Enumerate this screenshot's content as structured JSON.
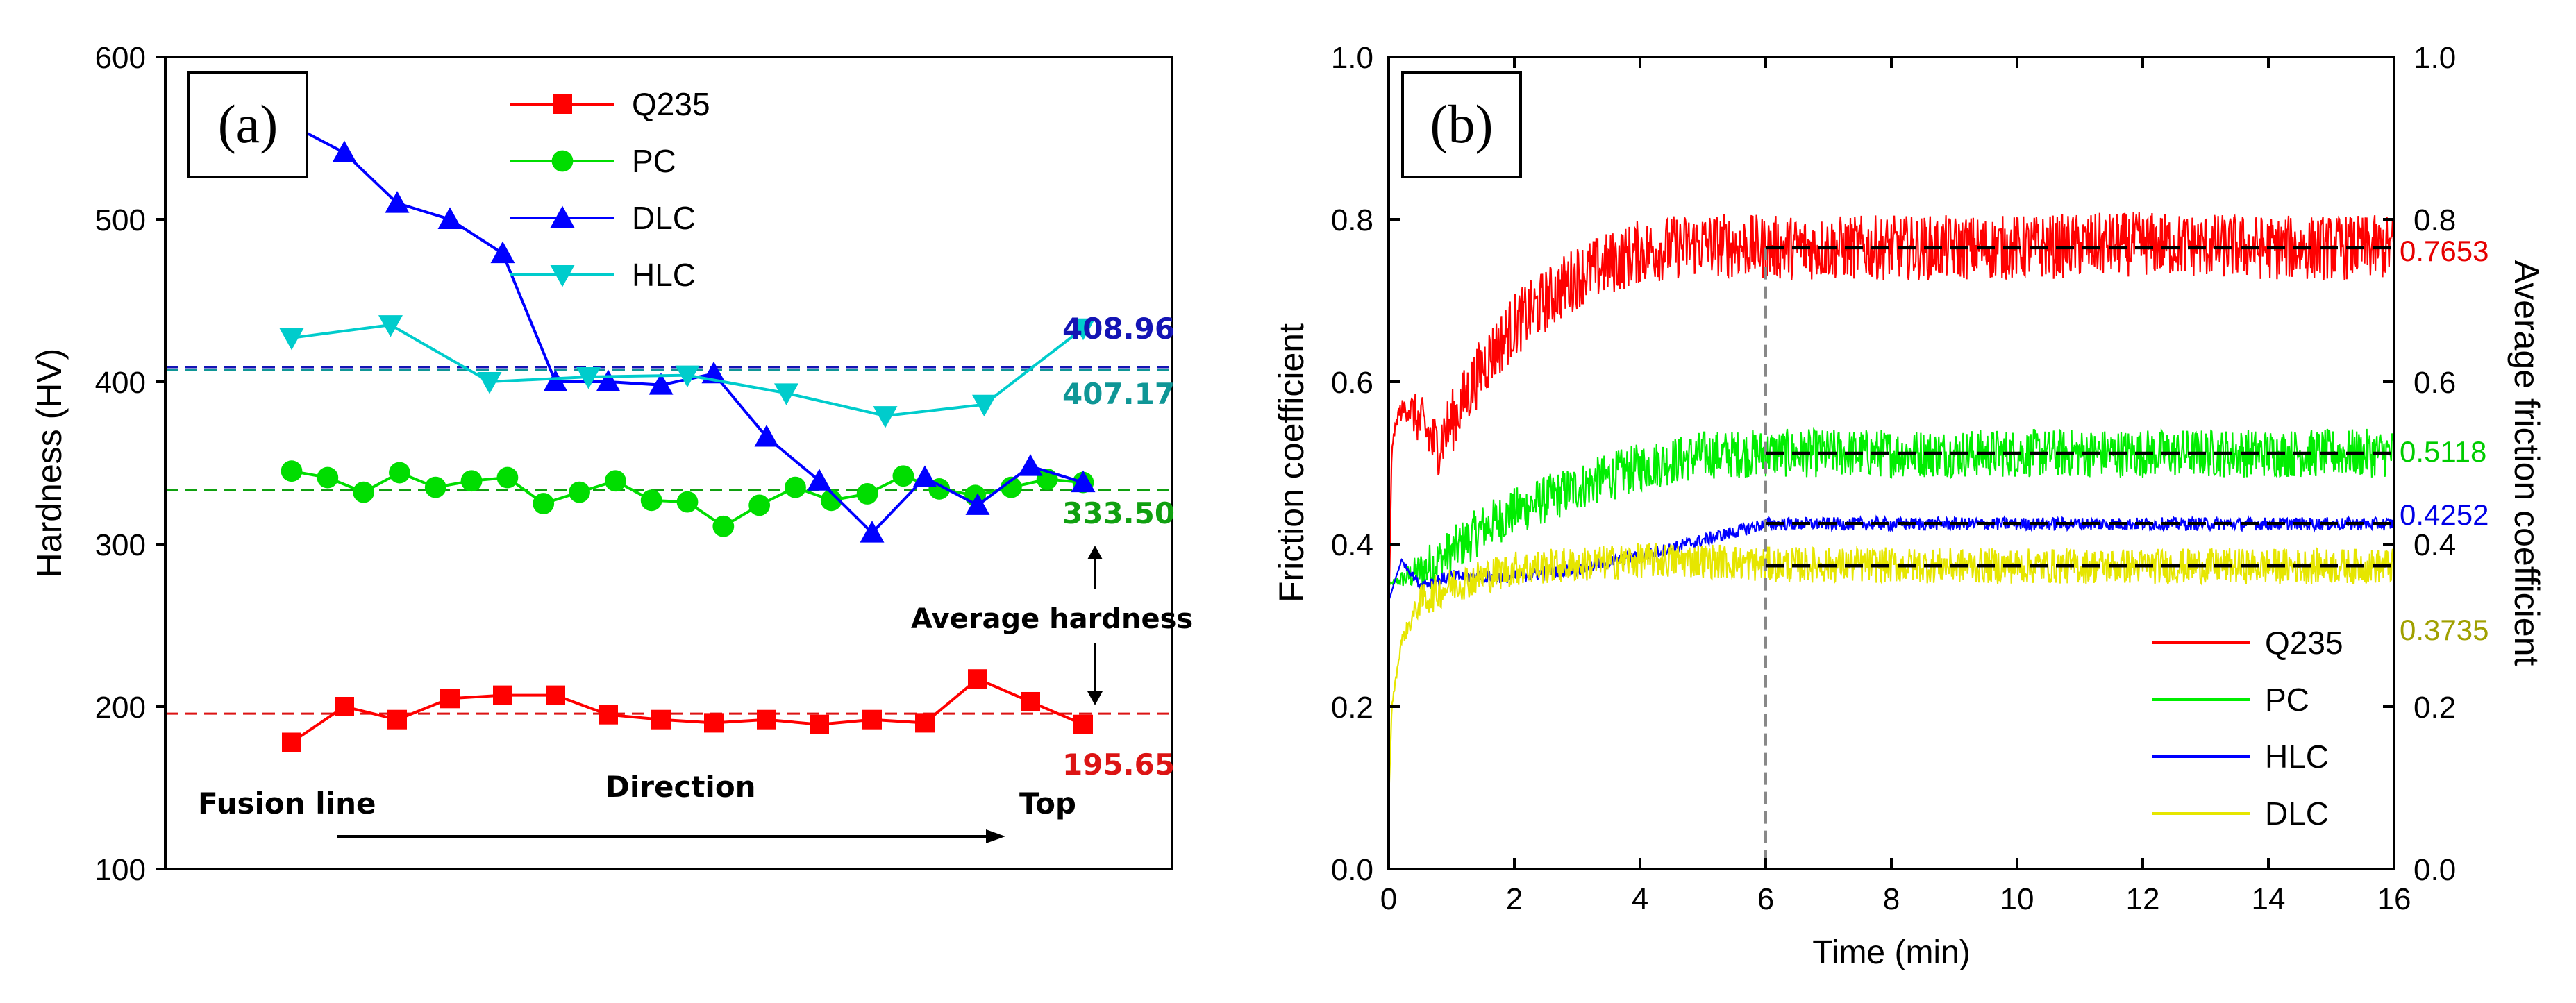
{
  "chart_data": [
    {
      "panel_label": "(a)",
      "type": "line",
      "ylabel": "Hardness (HV)",
      "ylim": [
        100,
        600
      ],
      "yticks": [
        100,
        200,
        300,
        400,
        500,
        600
      ],
      "series": [
        {
          "name": "Q235",
          "color": "#ff0000",
          "marker": "square",
          "values": [
            178,
            200,
            192,
            205,
            207,
            207,
            195,
            192,
            190,
            192,
            189,
            192,
            190,
            217,
            203,
            189
          ]
        },
        {
          "name": "PC",
          "color": "#00dd00",
          "marker": "circle",
          "values": [
            345,
            341,
            332,
            344,
            335,
            339,
            341,
            325,
            332,
            339,
            327,
            326,
            311,
            324,
            335,
            327,
            331,
            342,
            334,
            330,
            335,
            340,
            338
          ]
        },
        {
          "name": "DLC",
          "color": "#0000ff",
          "marker": "triangle-up",
          "values": [
            558,
            541,
            510,
            500,
            479,
            400,
            400,
            398,
            405,
            366,
            339,
            307,
            341,
            324,
            348,
            338
          ]
        },
        {
          "name": "HLC",
          "color": "#00cccc",
          "marker": "triangle-down",
          "values": [
            427,
            435,
            400,
            403,
            404,
            393,
            379,
            386,
            433
          ]
        }
      ],
      "averages": [
        {
          "label": "408.96",
          "value": 408.96,
          "color": "#1414b4"
        },
        {
          "label": "407.17",
          "value": 407.17,
          "color": "#0f9696"
        },
        {
          "label": "333.50",
          "value": 333.5,
          "color": "#10a010"
        },
        {
          "label": "195.65",
          "value": 195.65,
          "color": "#dc1414"
        }
      ],
      "annotations": {
        "average_hardness": "Average hardness",
        "fusion_line": "Fusion line",
        "direction": "Direction",
        "top": "Top"
      },
      "legend_position": "top-center"
    },
    {
      "panel_label": "(b)",
      "type": "line",
      "xlabel": "Time (min)",
      "ylabel": "Friction coefficient",
      "y2label": "Average friction coefficient",
      "xlim": [
        0,
        16
      ],
      "ylim": [
        0,
        1.0
      ],
      "xticks": [
        0,
        2,
        4,
        6,
        8,
        10,
        12,
        14,
        16
      ],
      "yticks": [
        "0.0",
        "0.2",
        "0.4",
        "0.6",
        "0.8",
        "1.0"
      ],
      "y2ticks": [
        "0.0",
        "0.2",
        "0.4",
        "0.6",
        "0.8",
        "1.0"
      ],
      "vline_at": 6,
      "series": [
        {
          "name": "Q235",
          "color": "#ff0000",
          "points": [
            [
              0,
              0.3
            ],
            [
              0.05,
              0.52
            ],
            [
              0.15,
              0.56
            ],
            [
              0.3,
              0.57
            ],
            [
              0.5,
              0.55
            ],
            [
              0.75,
              0.52
            ],
            [
              1,
              0.55
            ],
            [
              1.5,
              0.62
            ],
            [
              2,
              0.67
            ],
            [
              2.5,
              0.7
            ],
            [
              3,
              0.73
            ],
            [
              4,
              0.76
            ],
            [
              5,
              0.77
            ],
            [
              6,
              0.765
            ],
            [
              8,
              0.765
            ],
            [
              10,
              0.765
            ],
            [
              12,
              0.77
            ],
            [
              14,
              0.765
            ],
            [
              16,
              0.765
            ]
          ],
          "noise": 0.04
        },
        {
          "name": "PC",
          "color": "#00ee00",
          "points": [
            [
              0,
              0.35
            ],
            [
              0.3,
              0.36
            ],
            [
              0.6,
              0.37
            ],
            [
              1,
              0.39
            ],
            [
              1.5,
              0.42
            ],
            [
              2,
              0.44
            ],
            [
              3,
              0.47
            ],
            [
              4,
              0.495
            ],
            [
              5,
              0.51
            ],
            [
              6,
              0.512
            ],
            [
              10,
              0.512
            ],
            [
              16,
              0.512
            ]
          ],
          "noise": 0.03
        },
        {
          "name": "HLC",
          "color": "#0000ff",
          "points": [
            [
              0,
              0.33
            ],
            [
              0.2,
              0.38
            ],
            [
              0.5,
              0.35
            ],
            [
              1,
              0.36
            ],
            [
              2,
              0.36
            ],
            [
              3,
              0.37
            ],
            [
              4,
              0.385
            ],
            [
              5,
              0.405
            ],
            [
              6,
              0.425
            ],
            [
              10,
              0.425
            ],
            [
              16,
              0.425
            ]
          ],
          "noise": 0.008
        },
        {
          "name": "DLC",
          "color": "#e6e600",
          "points": [
            [
              0,
              0.08
            ],
            [
              0.05,
              0.2
            ],
            [
              0.2,
              0.28
            ],
            [
              0.5,
              0.33
            ],
            [
              1,
              0.35
            ],
            [
              2,
              0.37
            ],
            [
              3,
              0.375
            ],
            [
              4,
              0.38
            ],
            [
              5,
              0.38
            ],
            [
              6,
              0.375
            ],
            [
              10,
              0.373
            ],
            [
              16,
              0.373
            ]
          ],
          "noise": 0.022
        }
      ],
      "averages": [
        {
          "label": "0.7653",
          "value": 0.7653,
          "color": "#e60000"
        },
        {
          "label": "0.5118",
          "value": 0.5118,
          "color": "#00cc00"
        },
        {
          "label": "0.4252",
          "value": 0.4252,
          "color": "#0000e6"
        },
        {
          "label": "0.3735",
          "value": 0.3735,
          "color": "#a0a000"
        }
      ],
      "legend_position": "bottom-right"
    }
  ]
}
